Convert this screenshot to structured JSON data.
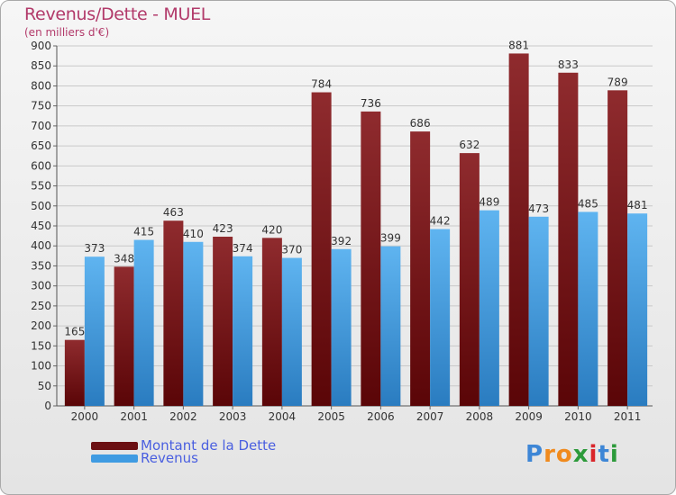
{
  "header": {
    "title": "Revenus/Dette - MUEL",
    "subtitle": "(en milliers d'€)"
  },
  "legend": {
    "items": [
      {
        "label": "Montant de la Dette",
        "color": "#6b0f12"
      },
      {
        "label": "Revenus",
        "color": "#3f9be2"
      }
    ]
  },
  "logo": {
    "text": "Proxiti",
    "letters": [
      "P",
      "r",
      "o",
      "x",
      "i",
      "t",
      "i"
    ],
    "colors": [
      "#3d86d6",
      "#f08a1d",
      "#f08a1d",
      "#2c9a3a",
      "#d9262b",
      "#3d86d6",
      "#2c9a3a"
    ]
  },
  "colors": {
    "dette_top": "#8f2b2e",
    "dette_bottom": "#5a0507",
    "revenus_top": "#5fb4f0",
    "revenus_bottom": "#2a7cc0",
    "grid": "#c9c9c9"
  },
  "chart_data": {
    "type": "bar",
    "title": "Revenus/Dette - MUEL",
    "subtitle": "(en milliers d'€)",
    "categories": [
      "2000",
      "2001",
      "2002",
      "2003",
      "2004",
      "2005",
      "2006",
      "2007",
      "2008",
      "2009",
      "2010",
      "2011"
    ],
    "series": [
      {
        "name": "Montant de la Dette",
        "values": [
          165,
          348,
          463,
          423,
          420,
          784,
          736,
          686,
          632,
          881,
          833,
          789
        ]
      },
      {
        "name": "Revenus",
        "values": [
          373,
          415,
          410,
          374,
          370,
          392,
          399,
          442,
          489,
          473,
          485,
          481
        ]
      }
    ],
    "ylim": [
      0,
      900
    ],
    "yticks": [
      0,
      50,
      100,
      150,
      200,
      250,
      300,
      350,
      400,
      450,
      500,
      550,
      600,
      650,
      700,
      750,
      800,
      850,
      900
    ],
    "grid": true,
    "legend_position": "bottom-left"
  }
}
